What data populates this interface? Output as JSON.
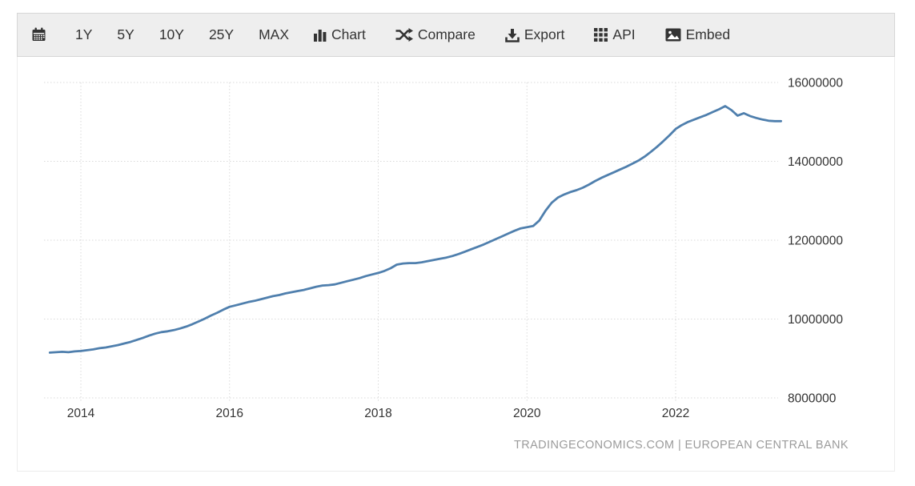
{
  "toolbar": {
    "calendar": {
      "icon": "calendar-icon"
    },
    "ranges": [
      {
        "label": "1Y"
      },
      {
        "label": "5Y"
      },
      {
        "label": "10Y"
      },
      {
        "label": "25Y"
      },
      {
        "label": "MAX"
      }
    ],
    "tools": [
      {
        "label": "Chart",
        "icon": "bar-chart-icon"
      },
      {
        "label": "Compare",
        "icon": "shuffle-icon"
      },
      {
        "label": "Export",
        "icon": "download-icon"
      },
      {
        "label": "API",
        "icon": "grid-icon"
      },
      {
        "label": "Embed",
        "icon": "image-icon"
      }
    ]
  },
  "chart_data": {
    "type": "line",
    "frequency": "monthly",
    "start": "2013-08",
    "values": [
      9150000,
      9160000,
      9170000,
      9160000,
      9180000,
      9190000,
      9210000,
      9230000,
      9260000,
      9280000,
      9310000,
      9340000,
      9380000,
      9420000,
      9470000,
      9520000,
      9580000,
      9630000,
      9670000,
      9690000,
      9720000,
      9760000,
      9810000,
      9870000,
      9940000,
      10010000,
      10090000,
      10160000,
      10240000,
      10310000,
      10350000,
      10390000,
      10430000,
      10460000,
      10500000,
      10540000,
      10580000,
      10610000,
      10650000,
      10680000,
      10710000,
      10740000,
      10780000,
      10820000,
      10850000,
      10860000,
      10880000,
      10920000,
      10960000,
      11000000,
      11040000,
      11090000,
      11130000,
      11170000,
      11220000,
      11290000,
      11380000,
      11410000,
      11420000,
      11420000,
      11440000,
      11470000,
      11500000,
      11530000,
      11560000,
      11600000,
      11650000,
      11710000,
      11770000,
      11830000,
      11890000,
      11960000,
      12030000,
      12100000,
      12170000,
      12240000,
      12300000,
      12330000,
      12360000,
      12500000,
      12750000,
      12950000,
      13080000,
      13160000,
      13220000,
      13270000,
      13330000,
      13410000,
      13500000,
      13580000,
      13650000,
      13720000,
      13790000,
      13860000,
      13940000,
      14020000,
      14120000,
      14240000,
      14370000,
      14510000,
      14660000,
      14820000,
      14920000,
      15000000,
      15060000,
      15120000,
      15180000,
      15250000,
      15320000,
      15400000,
      15300000,
      15160000,
      15220000,
      15150000,
      15100000,
      15060000,
      15030000,
      15020000,
      15020000
    ],
    "x_ticks": [
      2014,
      2016,
      2018,
      2020,
      2022
    ],
    "y_ticks": [
      8000000,
      10000000,
      12000000,
      14000000,
      16000000
    ],
    "ylim": [
      8000000,
      16000000
    ],
    "title": "",
    "xlabel": "",
    "ylabel": "",
    "grid": true,
    "legend_position": "none",
    "line_color": "#4f7fad",
    "grid_color": "#dadada",
    "tick_color": "#333333",
    "attribution": "TRADINGECONOMICS.COM | EUROPEAN CENTRAL BANK",
    "attribution_color": "#9b9b9b"
  }
}
